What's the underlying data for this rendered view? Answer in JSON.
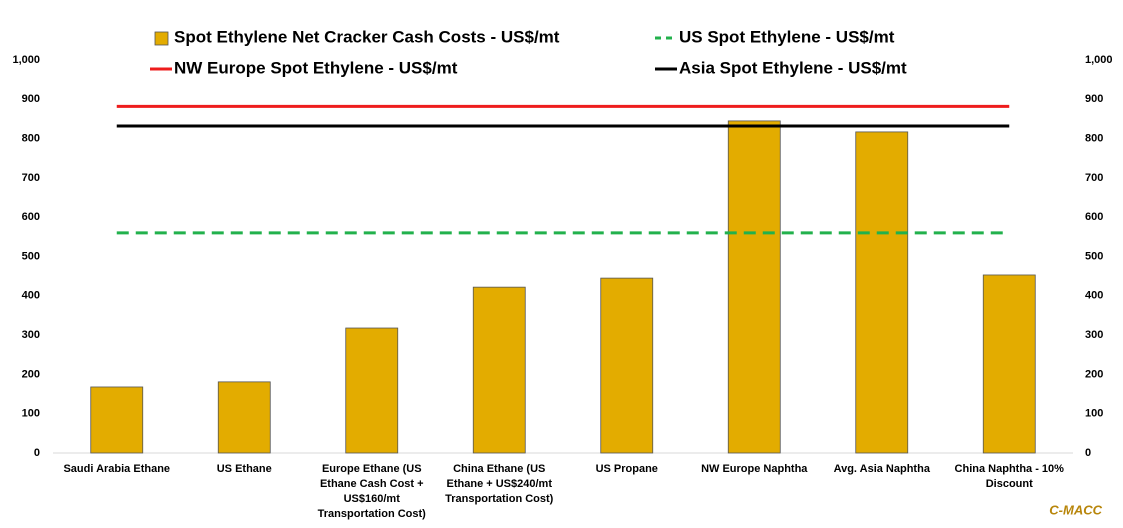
{
  "chart_data": {
    "type": "bar",
    "categories": [
      "Saudi Arabia Ethane",
      "US Ethane",
      "Europe Ethane (US Ethane Cash Cost + US$160/mt Transportation Cost)",
      "China Ethane (US Ethane + US$240/mt Transportation Cost)",
      "US Propane",
      "NW Europe Naphtha",
      "Avg. Asia Naphtha",
      "China Naphtha - 10% Discount"
    ],
    "series": [
      {
        "name": "Spot Ethylene Net Cracker Cash Costs - US$/mt",
        "type": "bar",
        "color": "#e3ac00",
        "values": [
          168,
          181,
          318,
          422,
          445,
          845,
          817,
          453
        ]
      },
      {
        "name": "US Spot Ethylene - US$/mt",
        "type": "line",
        "dashed": true,
        "color": "#22b14c",
        "values": [
          560,
          560,
          560,
          560,
          560,
          560,
          560,
          560
        ]
      },
      {
        "name": "NW Europe Spot Ethylene - US$/mt",
        "type": "line",
        "color": "#ee1c1c",
        "values": [
          882,
          882,
          882,
          882,
          882,
          882,
          882,
          882
        ]
      },
      {
        "name": "Asia Spot Ethylene - US$/mt",
        "type": "line",
        "color": "#000000",
        "values": [
          832,
          832,
          832,
          832,
          832,
          832,
          832,
          832
        ]
      }
    ],
    "ylim": [
      0,
      1000
    ],
    "yticks": [
      0,
      100,
      200,
      300,
      400,
      500,
      600,
      700,
      800,
      900,
      {
        "value": 1000,
        "label": "1,000"
      }
    ],
    "y2lim": [
      0,
      1000
    ],
    "y2ticks": [
      0,
      100,
      200,
      300,
      400,
      500,
      600,
      700,
      800,
      900,
      {
        "value": 1000,
        "label": "1,000"
      }
    ],
    "watermark": "C-MACC"
  }
}
